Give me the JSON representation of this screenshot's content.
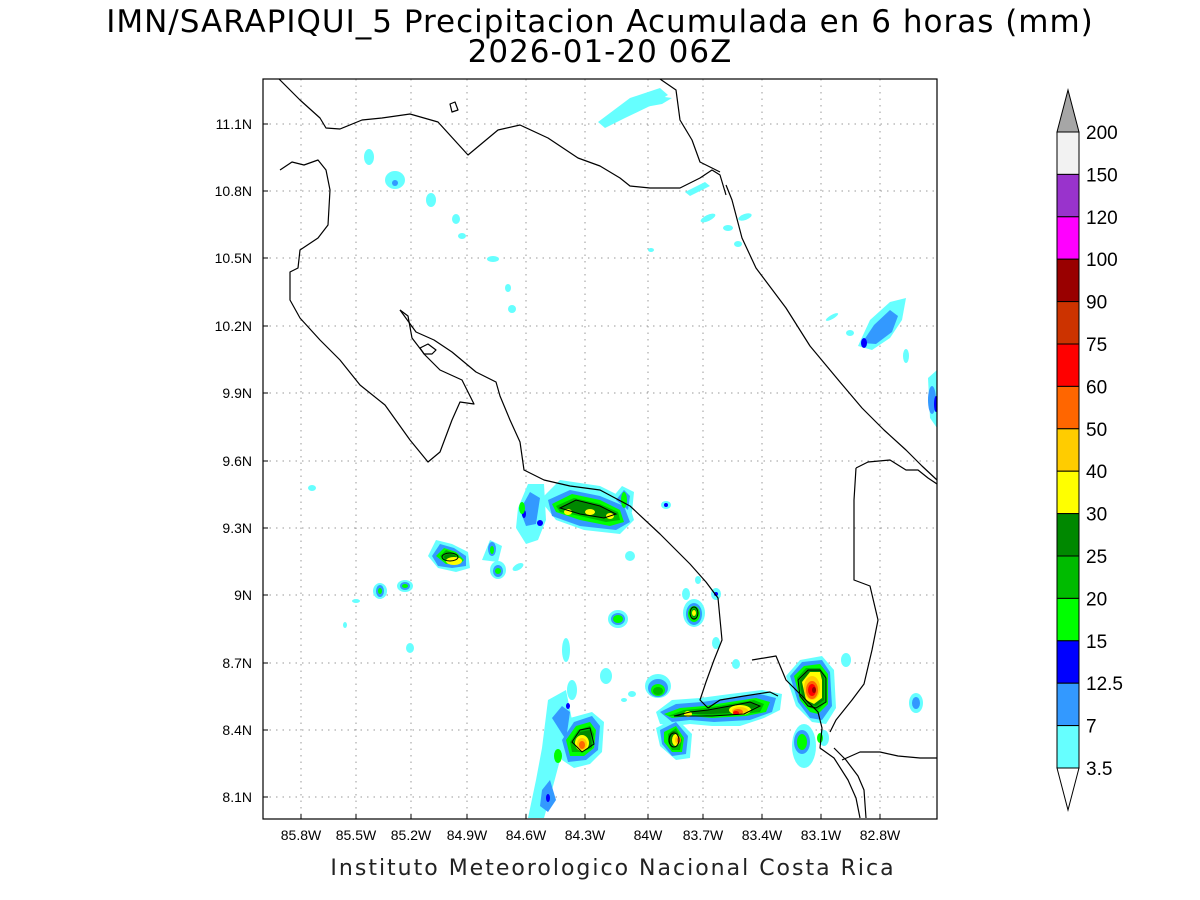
{
  "title": {
    "line1": "IMN/SARAPIQUI_5 Precipitacion Acumulada en 6 horas (mm)",
    "line2": "2026-01-20 06Z"
  },
  "footer": "Instituto Meteorologico Nacional Costa Rica",
  "map": {
    "lat_ticks": [
      "11.1N",
      "10.8N",
      "10.5N",
      "10.2N",
      "9.9N",
      "9.6N",
      "9.3N",
      "9N",
      "8.7N",
      "8.4N",
      "8.1N"
    ],
    "lon_ticks": [
      "85.8W",
      "85.5W",
      "85.2W",
      "84.9W",
      "84.6W",
      "84.3W",
      "84W",
      "83.7W",
      "83.4W",
      "83.1W",
      "82.8W"
    ],
    "grid": "dotted"
  },
  "colorbar": {
    "labels": [
      "200",
      "150",
      "120",
      "100",
      "90",
      "75",
      "60",
      "50",
      "40",
      "30",
      "25",
      "20",
      "15",
      "12.5",
      "7",
      "3.5"
    ],
    "colors": [
      "#f2f2f2",
      "#9933cc",
      "#ff00ff",
      "#990000",
      "#cc3300",
      "#ff0000",
      "#ff6600",
      "#ffcc00",
      "#ffff00",
      "#008800",
      "#00bb00",
      "#00ff00",
      "#0000ff",
      "#3399ff",
      "#66ffff"
    ],
    "top_arrow_color": "#a6a6a6",
    "bottom_arrow_color": "#ffffff"
  }
}
